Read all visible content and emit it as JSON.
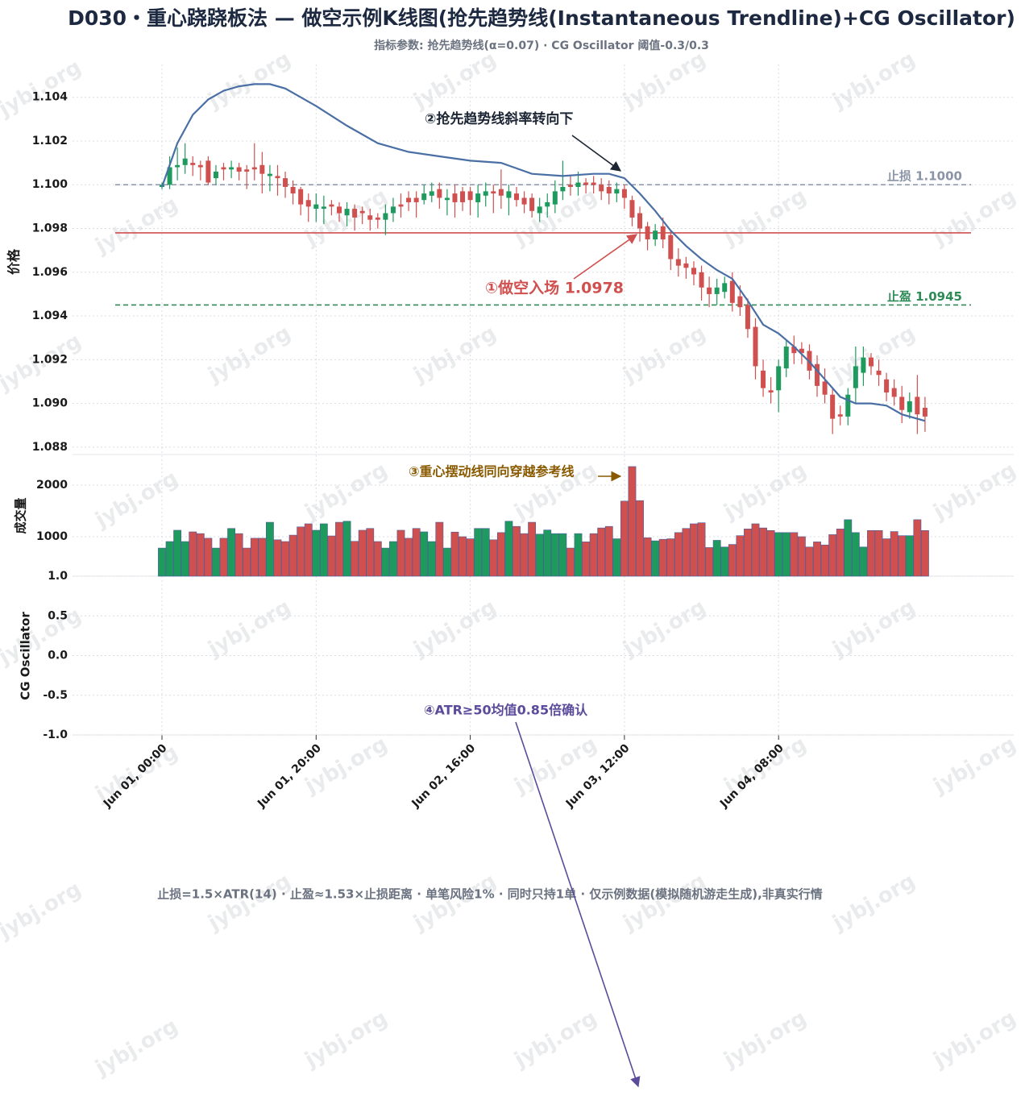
{
  "chart_data": {
    "type": "candlestick",
    "title": "D030・重心跷跷板法 — 做空示例K线图(抢先趋势线(Instantaneous Trendline)+CG Oscillator)",
    "subtitle": "指标参数: 抢先趋势线(α=0.07) · CG Oscillator 阈值-0.3/0.3",
    "footer": "止损=1.5×ATR(14) · 止盈≈1.53×止损距离 · 单笔风险1% · 同时只持1单 · 仅示例数据(模拟随机游走生成),非真实行情",
    "watermark": "jybj.org",
    "ylabel": "价格",
    "up_color": "#1e9a5e",
    "down_color": "#d0504f",
    "grid": true,
    "xticks": [
      {
        "value": 0,
        "label": "Jun 01, 00:00"
      },
      {
        "value": 20,
        "label": "Jun 01, 20:00"
      },
      {
        "value": 40,
        "label": "Jun 02, 16:00"
      },
      {
        "value": 60,
        "label": "Jun 03, 12:00"
      },
      {
        "value": 80,
        "label": "Jun 04, 08:00"
      }
    ],
    "ylim": [
      1.0877,
      1.1055
    ],
    "yticks": [
      1.088,
      {
        "value": 1.09,
        "label": "1.090"
      },
      1.092,
      1.094,
      1.096,
      1.098,
      {
        "value": 1.1,
        "label": "1.100"
      },
      1.102,
      1.104
    ],
    "open": [
      1.0999,
      1.1,
      1.1008,
      1.1009,
      1.101,
      1.1009,
      1.1011,
      1.1003,
      1.1008,
      1.1007,
      1.1008,
      1.1007,
      1.1008,
      1.1009,
      1.1004,
      1.1004,
      1.1003,
      1.0999,
      1.0998,
      1.0993,
      1.0989,
      1.0989,
      1.0991,
      1.099,
      1.0986,
      1.0989,
      1.0988,
      1.0986,
      1.0985,
      1.0984,
      1.0987,
      1.0991,
      1.0994,
      1.0994,
      1.0993,
      1.0995,
      1.0998,
      1.0993,
      1.0996,
      1.0997,
      1.0997,
      1.0992,
      1.0995,
      1.0997,
      1.0998,
      1.0994,
      1.0996,
      1.0994,
      1.0994,
      1.0987,
      1.099,
      1.0991,
      1.0997,
      1.1,
      1.0999,
      1.1001,
      1.1001,
      1.1,
      1.0999,
      1.0996,
      1.0998,
      1.0993,
      1.0987,
      1.0981,
      1.0975,
      1.0981,
      1.0977,
      1.0966,
      1.0964,
      1.0962,
      1.096,
      1.0953,
      1.095,
      1.0951,
      1.0956,
      1.0949,
      1.0945,
      1.0935,
      1.0915,
      1.0906,
      1.0906,
      1.0916,
      1.0926,
      1.0925,
      1.0924,
      1.0918,
      1.091,
      1.0904,
      1.0895,
      1.0894,
      1.0907,
      1.0914,
      1.0921,
      1.0915,
      1.0911,
      1.0907,
      1.0903,
      1.0896,
      1.0903,
      1.0898
    ],
    "high": [
      1.1001,
      1.1013,
      1.1017,
      1.1019,
      1.1013,
      1.1011,
      1.1013,
      1.1009,
      1.101,
      1.1011,
      1.101,
      1.1009,
      1.1019,
      1.1015,
      1.1009,
      1.1009,
      1.1006,
      1.1002,
      1.0999,
      1.0996,
      1.0996,
      1.0995,
      1.0993,
      1.0992,
      1.0992,
      1.0991,
      1.099,
      1.0989,
      1.0987,
      1.0991,
      1.0994,
      1.0996,
      1.0997,
      1.0997,
      1.1,
      1.1001,
      1.1001,
      1.0998,
      1.1,
      1.0999,
      1.0999,
      1.1,
      1.1001,
      1.1,
      1.1007,
      1.1,
      1.0999,
      1.0997,
      1.0996,
      1.0994,
      1.0996,
      1.1002,
      1.1011,
      1.1004,
      1.1006,
      1.1003,
      1.1004,
      1.1003,
      1.1002,
      1.1001,
      1.1,
      1.0995,
      1.099,
      1.0983,
      1.0982,
      1.0985,
      1.0979,
      1.0971,
      1.0967,
      1.0965,
      1.0963,
      1.0958,
      1.0957,
      1.0958,
      1.096,
      1.0954,
      1.0948,
      1.0939,
      1.092,
      1.0912,
      1.092,
      1.0929,
      1.0931,
      1.0928,
      1.0927,
      1.0922,
      1.0916,
      1.0907,
      1.0899,
      1.0907,
      1.0926,
      1.0926,
      1.0923,
      1.092,
      1.0914,
      1.0911,
      1.0908,
      1.0905,
      1.0913,
      1.0903
    ],
    "low": [
      1.0998,
      1.0998,
      1.1002,
      1.1005,
      1.1004,
      1.1002,
      1.1,
      1.1,
      1.1002,
      1.1003,
      1.1002,
      1.0998,
      1.1002,
      1.0996,
      1.0997,
      1.0995,
      1.0994,
      1.0991,
      1.0986,
      1.0983,
      1.0983,
      1.0982,
      1.0986,
      1.0983,
      1.0981,
      1.0979,
      1.0982,
      1.0979,
      1.098,
      1.0977,
      1.0983,
      1.0985,
      1.0988,
      1.0985,
      1.0991,
      1.0992,
      1.0989,
      1.0986,
      1.0985,
      1.0988,
      1.0986,
      1.0985,
      1.099,
      1.0987,
      1.0989,
      1.0986,
      1.099,
      1.0987,
      1.0985,
      1.0983,
      1.0985,
      1.0987,
      1.0993,
      1.0995,
      1.0995,
      1.0996,
      1.0996,
      1.0993,
      1.0991,
      1.0992,
      1.0989,
      1.0981,
      1.0974,
      1.097,
      1.0972,
      1.0971,
      1.0961,
      1.0958,
      1.0957,
      1.0954,
      1.0947,
      1.0944,
      1.0945,
      1.0948,
      1.0942,
      1.094,
      1.093,
      1.0911,
      1.0903,
      1.09,
      1.0896,
      1.0912,
      1.0918,
      1.0918,
      1.0911,
      1.0903,
      1.09,
      1.0886,
      1.089,
      1.089,
      1.09,
      1.0908,
      1.0913,
      1.0908,
      1.0901,
      1.0899,
      1.0891,
      1.0893,
      1.0886,
      1.0887
    ],
    "close": [
      1.1,
      1.1008,
      1.1009,
      1.1012,
      1.1009,
      1.1008,
      1.1001,
      1.1006,
      1.1007,
      1.1008,
      1.1006,
      1.1006,
      1.1007,
      1.1005,
      1.1005,
      1.1003,
      1.0999,
      1.0996,
      1.0991,
      1.099,
      1.0991,
      1.099,
      1.099,
      1.0987,
      1.0989,
      1.0985,
      1.0987,
      1.0984,
      1.0984,
      1.0987,
      1.099,
      1.099,
      1.0992,
      1.0992,
      1.0996,
      1.0997,
      1.0994,
      1.0994,
      1.0992,
      1.0992,
      1.0993,
      1.0996,
      1.0997,
      1.0996,
      1.0995,
      1.0997,
      1.0993,
      1.0991,
      1.0988,
      1.099,
      1.0992,
      1.0997,
      1.0999,
      1.0999,
      1.1001,
      1.1,
      1.1,
      1.0997,
      1.0996,
      1.0998,
      1.0994,
      1.0985,
      1.098,
      1.0975,
      1.0979,
      1.0975,
      1.0966,
      1.0963,
      1.0962,
      1.0959,
      1.0953,
      1.095,
      1.0953,
      1.0955,
      1.0946,
      1.0944,
      1.0934,
      1.0917,
      1.0907,
      1.0905,
      1.0917,
      1.0926,
      1.0923,
      1.0923,
      1.0915,
      1.0908,
      1.0904,
      1.0893,
      1.0894,
      1.0904,
      1.0917,
      1.0921,
      1.0917,
      1.0913,
      1.0905,
      1.0903,
      1.0897,
      1.0901,
      1.0895,
      1.0894
    ],
    "trendline": {
      "color": "#4a6fa5",
      "x": [
        0,
        2,
        4,
        6,
        8,
        10,
        12,
        14,
        16,
        18,
        20,
        24,
        28,
        32,
        36,
        40,
        44,
        48,
        52,
        56,
        58,
        60,
        62,
        64,
        66,
        68,
        70,
        72,
        74,
        76,
        78,
        80,
        82,
        84,
        86,
        88,
        90,
        92,
        94,
        96,
        99
      ],
      "values": [
        1.0999,
        1.1019,
        1.1032,
        1.1039,
        1.1043,
        1.1045,
        1.1046,
        1.1046,
        1.1044,
        1.104,
        1.1036,
        1.1027,
        1.1019,
        1.1015,
        1.1013,
        1.1011,
        1.101,
        1.1005,
        1.1004,
        1.1005,
        1.1005,
        1.1003,
        1.0996,
        1.0988,
        1.0979,
        1.0972,
        1.0966,
        1.0961,
        1.0957,
        1.0947,
        1.0936,
        1.0932,
        1.0926,
        1.0919,
        1.0911,
        1.0903,
        1.09,
        1.09,
        1.0899,
        1.0895,
        1.0892
      ]
    },
    "levels": [
      {
        "name": "止损 1.1000",
        "value": 1.1,
        "color": "#8a94a6",
        "dashed": true
      },
      {
        "value": 1.0978,
        "color": "#d0504f",
        "dashed": false
      },
      {
        "name": "止盈 1.0945",
        "value": 1.0945,
        "color": "#2e8b57",
        "dashed": true
      }
    ],
    "annotations": [
      {
        "text": "②抢先趋势线斜率转向下",
        "color": "#1c2533"
      },
      {
        "text": "①做空入场 1.0978",
        "color": "#d0504f"
      },
      {
        "text": "③重心摆动线同向穿越参考线",
        "color": "#8a5a00"
      },
      {
        "text": "④ATR≥50均值0.85倍确认",
        "color": "#5b4b9a"
      }
    ],
    "volume": {
      "ylabel": "成交量",
      "edge_color": "#4a5d9a",
      "ylim": [
        234,
        2578
      ],
      "yticks": [
        1000,
        2000
      ],
      "values": [
        780,
        906,
        1125,
        906,
        1094,
        1060,
        970,
        780,
        970,
        1160,
        1060,
        780,
        970,
        970,
        1280,
        940,
        906,
        1030,
        1190,
        1250,
        1125,
        1250,
        1015,
        1280,
        1300,
        910,
        1125,
        1160,
        906,
        780,
        906,
        1125,
        970,
        1160,
        1094,
        906,
        1280,
        780,
        1090,
        1000,
        960,
        1160,
        1160,
        940,
        1080,
        1300,
        1200,
        1060,
        1280,
        1050,
        1130,
        1060,
        1060,
        780,
        1060,
        900,
        1060,
        1170,
        1200,
        960,
        1690,
        2360,
        1700,
        980,
        920,
        950,
        960,
        1080,
        1160,
        1250,
        1270,
        790,
        930,
        800,
        850,
        1020,
        1150,
        1250,
        1170,
        1120,
        1080,
        1080,
        1080,
        1000,
        800,
        900,
        840,
        1040,
        1150,
        1330,
        1080,
        800,
        1120,
        1120,
        960,
        1100,
        1020,
        1020,
        1330,
        1120
      ]
    },
    "cg": {
      "ylabel": "CG Oscillator",
      "ylim": [
        -1,
        1
      ],
      "yticks": [
        {
          "value": 1,
          "label": "1.0"
        },
        0.5,
        {
          "value": 0,
          "label": "0.0"
        },
        -0.5,
        {
          "value": -1,
          "label": "-1.0"
        }
      ]
    }
  }
}
